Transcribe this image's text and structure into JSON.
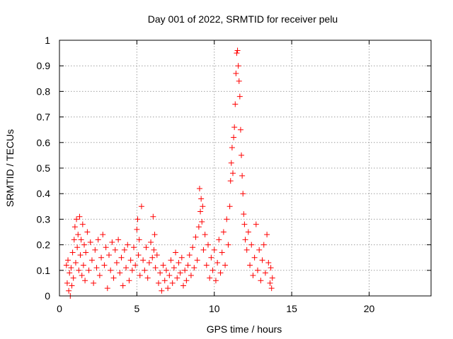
{
  "chart_data": {
    "type": "scatter",
    "title": "Day 001 of 2022, SRMTID for receiver pelu",
    "xlabel": "GPS time / hours",
    "ylabel": "SRMTID / TECUs",
    "xlim": [
      0,
      24
    ],
    "ylim": [
      0,
      1
    ],
    "xticks": [
      0,
      5,
      10,
      15,
      20
    ],
    "yticks": [
      0,
      0.1,
      0.2,
      0.3,
      0.4,
      0.5,
      0.6,
      0.7,
      0.8,
      0.9,
      1
    ],
    "xtick_labels": [
      "0",
      "5",
      "10",
      "15",
      "20"
    ],
    "ytick_labels": [
      "0",
      "0.1",
      "0.2",
      "0.3",
      "0.4",
      "0.5",
      "0.6",
      "0.7",
      "0.8",
      "0.9",
      "1"
    ],
    "grid": true,
    "marker": "+",
    "color": "#ff0000",
    "series": [
      {
        "name": "SRMTID",
        "points": [
          [
            0.45,
            0.12
          ],
          [
            0.5,
            0.05
          ],
          [
            0.55,
            0.14
          ],
          [
            0.6,
            0.02
          ],
          [
            0.65,
            0.09
          ],
          [
            0.7,
            0.0
          ],
          [
            0.75,
            0.11
          ],
          [
            0.8,
            0.04
          ],
          [
            0.85,
            0.17
          ],
          [
            0.9,
            0.07
          ],
          [
            0.95,
            0.22
          ],
          [
            1.0,
            0.27
          ],
          [
            1.05,
            0.13
          ],
          [
            1.1,
            0.3
          ],
          [
            1.15,
            0.19
          ],
          [
            1.2,
            0.24
          ],
          [
            1.25,
            0.1
          ],
          [
            1.3,
            0.31
          ],
          [
            1.35,
            0.16
          ],
          [
            1.4,
            0.22
          ],
          [
            1.45,
            0.08
          ],
          [
            1.5,
            0.28
          ],
          [
            1.55,
            0.12
          ],
          [
            1.6,
            0.2
          ],
          [
            1.65,
            0.06
          ],
          [
            1.7,
            0.17
          ],
          [
            1.8,
            0.25
          ],
          [
            1.9,
            0.1
          ],
          [
            2.0,
            0.21
          ],
          [
            2.1,
            0.14
          ],
          [
            2.2,
            0.05
          ],
          [
            2.3,
            0.18
          ],
          [
            2.4,
            0.11
          ],
          [
            2.5,
            0.22
          ],
          [
            2.6,
            0.08
          ],
          [
            2.7,
            0.15
          ],
          [
            2.8,
            0.24
          ],
          [
            2.9,
            0.12
          ],
          [
            3.0,
            0.19
          ],
          [
            3.1,
            0.03
          ],
          [
            3.2,
            0.16
          ],
          [
            3.3,
            0.1
          ],
          [
            3.4,
            0.21
          ],
          [
            3.5,
            0.07
          ],
          [
            3.6,
            0.18
          ],
          [
            3.7,
            0.13
          ],
          [
            3.8,
            0.22
          ],
          [
            3.9,
            0.09
          ],
          [
            4.0,
            0.15
          ],
          [
            4.1,
            0.04
          ],
          [
            4.2,
            0.18
          ],
          [
            4.3,
            0.11
          ],
          [
            4.4,
            0.2
          ],
          [
            4.5,
            0.06
          ],
          [
            4.6,
            0.14
          ],
          [
            4.7,
            0.1
          ],
          [
            4.8,
            0.19
          ],
          [
            4.9,
            0.12
          ],
          [
            5.0,
            0.26
          ],
          [
            5.05,
            0.3
          ],
          [
            5.1,
            0.16
          ],
          [
            5.15,
            0.22
          ],
          [
            5.2,
            0.08
          ],
          [
            5.3,
            0.35
          ],
          [
            5.4,
            0.14
          ],
          [
            5.5,
            0.1
          ],
          [
            5.6,
            0.19
          ],
          [
            5.7,
            0.07
          ],
          [
            5.8,
            0.13
          ],
          [
            5.9,
            0.21
          ],
          [
            6.0,
            0.15
          ],
          [
            6.05,
            0.31
          ],
          [
            6.1,
            0.18
          ],
          [
            6.15,
            0.24
          ],
          [
            6.2,
            0.11
          ],
          [
            6.3,
            0.16
          ],
          [
            6.4,
            0.05
          ],
          [
            6.5,
            0.09
          ],
          [
            6.6,
            0.02
          ],
          [
            6.7,
            0.12
          ],
          [
            6.8,
            0.06
          ],
          [
            6.9,
            0.1
          ],
          [
            7.0,
            0.03
          ],
          [
            7.1,
            0.08
          ],
          [
            7.2,
            0.14
          ],
          [
            7.3,
            0.05
          ],
          [
            7.4,
            0.11
          ],
          [
            7.5,
            0.17
          ],
          [
            7.6,
            0.07
          ],
          [
            7.7,
            0.13
          ],
          [
            7.8,
            0.09
          ],
          [
            7.9,
            0.15
          ],
          [
            8.0,
            0.04
          ],
          [
            8.1,
            0.1
          ],
          [
            8.2,
            0.06
          ],
          [
            8.3,
            0.12
          ],
          [
            8.4,
            0.16
          ],
          [
            8.5,
            0.08
          ],
          [
            8.6,
            0.19
          ],
          [
            8.7,
            0.11
          ],
          [
            8.8,
            0.23
          ],
          [
            8.9,
            0.14
          ],
          [
            9.0,
            0.27
          ],
          [
            9.05,
            0.42
          ],
          [
            9.1,
            0.33
          ],
          [
            9.15,
            0.38
          ],
          [
            9.2,
            0.29
          ],
          [
            9.25,
            0.35
          ],
          [
            9.3,
            0.18
          ],
          [
            9.4,
            0.24
          ],
          [
            9.5,
            0.12
          ],
          [
            9.6,
            0.2
          ],
          [
            9.7,
            0.07
          ],
          [
            9.8,
            0.15
          ],
          [
            9.9,
            0.1
          ],
          [
            10.0,
            0.18
          ],
          [
            10.1,
            0.06
          ],
          [
            10.2,
            0.13
          ],
          [
            10.3,
            0.22
          ],
          [
            10.4,
            0.09
          ],
          [
            10.5,
            0.17
          ],
          [
            10.6,
            0.25
          ],
          [
            10.7,
            0.12
          ],
          [
            10.8,
            0.3
          ],
          [
            10.9,
            0.2
          ],
          [
            11.0,
            0.35
          ],
          [
            11.05,
            0.45
          ],
          [
            11.1,
            0.52
          ],
          [
            11.15,
            0.58
          ],
          [
            11.2,
            0.48
          ],
          [
            11.25,
            0.62
          ],
          [
            11.3,
            0.66
          ],
          [
            11.35,
            0.75
          ],
          [
            11.4,
            0.87
          ],
          [
            11.45,
            0.95
          ],
          [
            11.5,
            0.96
          ],
          [
            11.55,
            0.9
          ],
          [
            11.6,
            0.84
          ],
          [
            11.65,
            0.78
          ],
          [
            11.7,
            0.65
          ],
          [
            11.75,
            0.55
          ],
          [
            11.8,
            0.47
          ],
          [
            11.85,
            0.4
          ],
          [
            11.9,
            0.32
          ],
          [
            11.95,
            0.28
          ],
          [
            12.0,
            0.22
          ],
          [
            12.1,
            0.18
          ],
          [
            12.2,
            0.25
          ],
          [
            12.3,
            0.12
          ],
          [
            12.4,
            0.2
          ],
          [
            12.5,
            0.08
          ],
          [
            12.6,
            0.15
          ],
          [
            12.7,
            0.28
          ],
          [
            12.8,
            0.1
          ],
          [
            12.9,
            0.18
          ],
          [
            13.0,
            0.06
          ],
          [
            13.1,
            0.14
          ],
          [
            13.2,
            0.2
          ],
          [
            13.3,
            0.09
          ],
          [
            13.4,
            0.24
          ],
          [
            13.5,
            0.13
          ],
          [
            13.6,
            0.05
          ],
          [
            13.65,
            0.11
          ],
          [
            13.7,
            0.03
          ],
          [
            13.75,
            0.07
          ]
        ]
      }
    ]
  }
}
